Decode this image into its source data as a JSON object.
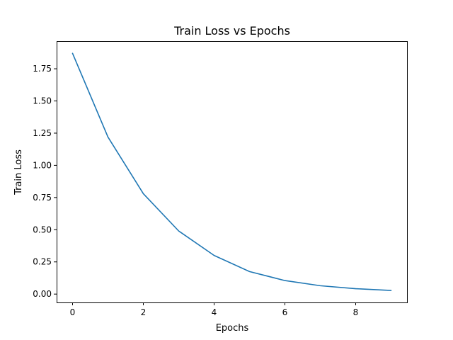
{
  "chart_data": {
    "type": "line",
    "title": "Train Loss vs Epochs",
    "xlabel": "Epochs",
    "ylabel": "Train Loss",
    "x": [
      0,
      1,
      2,
      3,
      4,
      5,
      6,
      7,
      8,
      9
    ],
    "series": [
      {
        "values": [
          1.87,
          1.22,
          0.78,
          0.49,
          0.3,
          0.175,
          0.105,
          0.065,
          0.042,
          0.028
        ],
        "color": "#1f77b4"
      }
    ],
    "xlim": [
      -0.45,
      9.45
    ],
    "ylim": [
      -0.065,
      1.965
    ],
    "xticks": [
      0,
      2,
      4,
      6,
      8
    ],
    "xtick_labels": [
      "0",
      "2",
      "4",
      "6",
      "8"
    ],
    "yticks": [
      0,
      0.25,
      0.5,
      0.75,
      1.0,
      1.25,
      1.5,
      1.75
    ],
    "ytick_labels": [
      "0.00",
      "0.25",
      "0.50",
      "0.75",
      "1.00",
      "1.25",
      "1.50",
      "1.75"
    ],
    "grid": false,
    "legend": "none"
  }
}
